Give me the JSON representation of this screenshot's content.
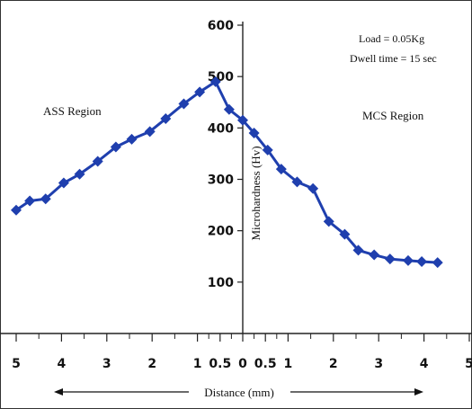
{
  "chart_data": {
    "type": "line",
    "title": "",
    "ylabel": "Microhardness (Hv)",
    "xlabel": "Distance (mm)",
    "ylim": [
      0,
      600
    ],
    "yticks": [
      "100",
      "200",
      "300",
      "400",
      "500",
      "600"
    ],
    "yticks_values": [
      100,
      200,
      300,
      400,
      500,
      600
    ],
    "xticks": [
      "5",
      "4",
      "3",
      "2",
      "1",
      "0.5",
      "0",
      "0.5",
      "1",
      "2",
      "3",
      "4",
      "5"
    ],
    "xticks_values": [
      -5,
      -4,
      -3,
      -2,
      -1,
      -0.5,
      0,
      0.5,
      1,
      2,
      3,
      4,
      5
    ],
    "series_color": "#1f3fae",
    "annotations": {
      "left_region": "ASS Region",
      "right_region": "MCS Region",
      "load": "Load = 0.05Kg",
      "dwell": "Dwell time = 15 sec"
    },
    "series": [
      {
        "x": [
          -5.0,
          -4.7,
          -4.35,
          -3.95,
          -3.6,
          -3.2,
          -2.8,
          -2.45,
          -2.05,
          -1.7,
          -1.3,
          -0.95,
          -0.6,
          -0.3,
          0.0,
          0.25,
          0.55,
          0.85,
          1.2,
          1.55,
          1.9,
          2.25,
          2.55,
          2.9,
          3.25,
          3.65,
          3.95,
          4.3
        ],
        "y": [
          240,
          258,
          262,
          293,
          310,
          335,
          363,
          378,
          393,
          418,
          447,
          470,
          490,
          436,
          415,
          390,
          357,
          320,
          295,
          282,
          218,
          193,
          162,
          153,
          145,
          142,
          140,
          138
        ]
      }
    ]
  }
}
